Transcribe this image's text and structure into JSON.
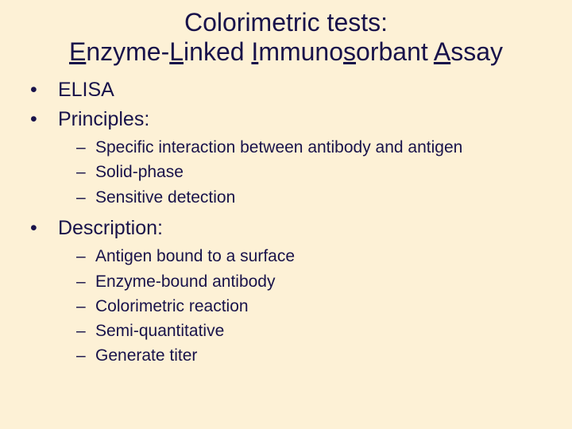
{
  "background_color": "#fdf1d6",
  "text_color": "#18124a",
  "title": {
    "line1": "Colorimetric tests:",
    "line2_parts": {
      "e": "E",
      "nzyme": "nzyme-",
      "l": "L",
      "inked": "inked ",
      "i": "I",
      "mmuno": "mmuno",
      "s": "s",
      "orbant": "orbant ",
      "a": "A",
      "ssay": "ssay"
    },
    "fontsize": 32,
    "align": "center"
  },
  "body_fontsize_l1": 25,
  "body_fontsize_l2": 21,
  "bullets": [
    {
      "text": "ELISA"
    },
    {
      "text": "Principles:",
      "sub": [
        "Specific interaction between antibody and antigen",
        "Solid-phase",
        "Sensitive detection"
      ]
    },
    {
      "text": "Description:",
      "sub": [
        "Antigen bound to a surface",
        "Enzyme-bound antibody",
        "Colorimetric reaction",
        "Semi-quantitative",
        "Generate titer"
      ]
    }
  ]
}
